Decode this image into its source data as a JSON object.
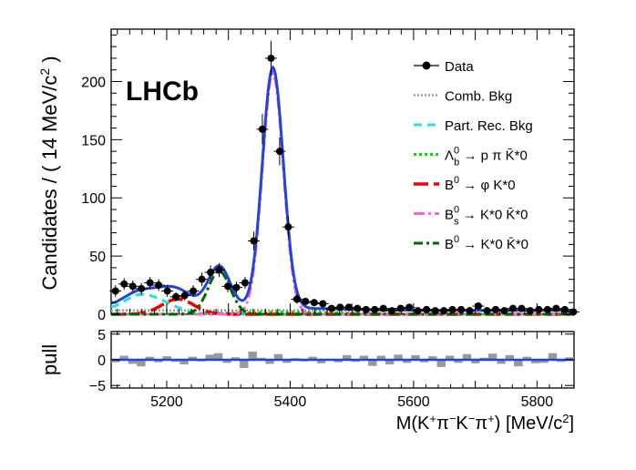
{
  "chart_data": [
    {
      "type": "scatter",
      "experiment_label": "LHCb",
      "xlabel": "M(K+π−K−π+) [MeV/c2]",
      "ylabel": "Candidates / ( 14 MeV/c2 )",
      "xlim": [
        5110,
        5860
      ],
      "ylim": [
        0,
        245
      ],
      "x_ticks": [
        5200,
        5400,
        5600,
        5800
      ],
      "y_ticks": [
        0,
        50,
        100,
        150,
        200
      ],
      "legend": [
        {
          "key": "data",
          "label": "Data",
          "color": "#000000",
          "style": "marker"
        },
        {
          "key": "comb",
          "label": "Comb. Bkg",
          "color": "#999999",
          "style": "dotted"
        },
        {
          "key": "part",
          "label": "Part. Rec. Bkg",
          "color": "#22e0e8",
          "style": "dashed"
        },
        {
          "key": "lambda",
          "label": "Λb0 → p π K̄*0",
          "color": "#00dd00",
          "style": "dotted"
        },
        {
          "key": "phi",
          "label": "B0 → φ K*0",
          "color": "#ee0000",
          "style": "longdash"
        },
        {
          "key": "bs",
          "label": "Bs0 → K*0 K̄*0",
          "color": "#ff66cc",
          "style": "dashdot"
        },
        {
          "key": "bd",
          "label": "B0 → K*0 K̄*0",
          "color": "#006600",
          "style": "dashdot"
        }
      ],
      "legend_parts": {
        "data": {
          "base": "Data",
          "sup": "",
          "sub": "",
          "rest": ""
        },
        "comb": {
          "base": "Comb. Bkg",
          "sup": "",
          "sub": "",
          "rest": ""
        },
        "part": {
          "base": "Part. Rec. Bkg",
          "sup": "",
          "sub": "",
          "rest": ""
        },
        "lambda": {
          "base": "Λ",
          "sup": "0",
          "sub": "b",
          "rest": " → p π K̄*0"
        },
        "phi": {
          "base": "B",
          "sup": "0",
          "sub": "",
          "rest": " → φ K*0"
        },
        "bs": {
          "base": "B",
          "sup": "0",
          "sub": "s",
          "rest": " → K*0 K̄*0"
        },
        "bd": {
          "base": "B",
          "sup": "0",
          "sub": "",
          "rest": " → K*0 K̄*0"
        }
      },
      "series": [
        {
          "name": "Data",
          "x": [
            5117,
            5131,
            5145,
            5159,
            5173,
            5187,
            5201,
            5215,
            5229,
            5243,
            5257,
            5271,
            5285,
            5299,
            5313,
            5327,
            5341,
            5355,
            5369,
            5383,
            5397,
            5411,
            5425,
            5439,
            5453,
            5467,
            5481,
            5495,
            5509,
            5523,
            5537,
            5551,
            5565,
            5579,
            5593,
            5607,
            5621,
            5635,
            5649,
            5663,
            5677,
            5691,
            5705,
            5719,
            5733,
            5747,
            5761,
            5775,
            5789,
            5803,
            5817,
            5831,
            5845,
            5859
          ],
          "y": [
            20,
            26,
            24,
            22,
            27,
            25,
            20,
            15,
            16,
            20,
            30,
            36,
            38,
            24,
            23,
            27,
            63,
            159,
            220,
            140,
            75,
            13,
            11,
            10,
            9,
            5,
            6,
            6,
            5,
            4,
            4,
            5,
            3,
            5,
            6,
            3,
            4,
            3,
            3,
            4,
            4,
            3,
            7,
            3,
            4,
            3,
            5,
            5,
            3,
            4,
            4,
            5,
            4,
            2
          ],
          "yerr": [
            5,
            5,
            5,
            5,
            5,
            5,
            5,
            4,
            4,
            5,
            6,
            6,
            6,
            5,
            5,
            5,
            8,
            13,
            15,
            12,
            9,
            4,
            3,
            3,
            3,
            2,
            3,
            3,
            2,
            2,
            2,
            2,
            2,
            2,
            3,
            2,
            2,
            2,
            2,
            2,
            2,
            2,
            3,
            2,
            2,
            2,
            2,
            2,
            2,
            2,
            2,
            2,
            2,
            2
          ]
        },
        {
          "name": "Total fit",
          "color": "#2244dd",
          "style": "solid"
        },
        {
          "name": "Comb. Bkg",
          "level": 3.3
        },
        {
          "name": "Part. Rec. Bkg",
          "mean": 5160,
          "sigma": 40,
          "amp": 17
        },
        {
          "name": "Λb0 → p π K̄*0",
          "mean": 5400,
          "sigma": 90,
          "amp": 1.8
        },
        {
          "name": "B0 → φ K*0",
          "mean": 5218,
          "sigma": 26,
          "amp": 13
        },
        {
          "name": "Bs0 → K*0 K̄*0",
          "mean": 5372,
          "sigma": 17,
          "amp": 207
        },
        {
          "name": "B0 → K*0 K̄*0",
          "mean": 5285,
          "sigma": 18,
          "amp": 37
        }
      ]
    },
    {
      "type": "bar",
      "ylabel": "pull",
      "xlim": [
        5110,
        5860
      ],
      "ylim": [
        -5.5,
        5.5
      ],
      "y_ticks": [
        -5,
        0,
        5
      ],
      "y_tick_labels": [
        "−5",
        "0",
        "5"
      ],
      "color": "#999999",
      "zero_line_color": "#2244dd",
      "values": [
        -0.5,
        0.8,
        -0.8,
        -1.3,
        0.6,
        -0.5,
        0.7,
        -0.4,
        -0.9,
        0.6,
        -0.3,
        1.0,
        1.3,
        -0.6,
        0.5,
        -1.6,
        1.6,
        0.4,
        -0.8,
        1.1,
        -0.6,
        0.3,
        -0.3,
        0.6,
        -0.7,
        0.2,
        -0.5,
        0.9,
        -0.4,
        0.8,
        -1.2,
        0.8,
        -0.9,
        1.0,
        -0.6,
        0.9,
        -0.5,
        0.7,
        -1.4,
        0.8,
        -0.6,
        1.1,
        -0.7,
        0.4,
        1.2,
        -0.8,
        0.9,
        -1.3,
        0.6,
        -0.7,
        -0.6,
        1.3,
        -0.4,
        0.5
      ]
    }
  ]
}
